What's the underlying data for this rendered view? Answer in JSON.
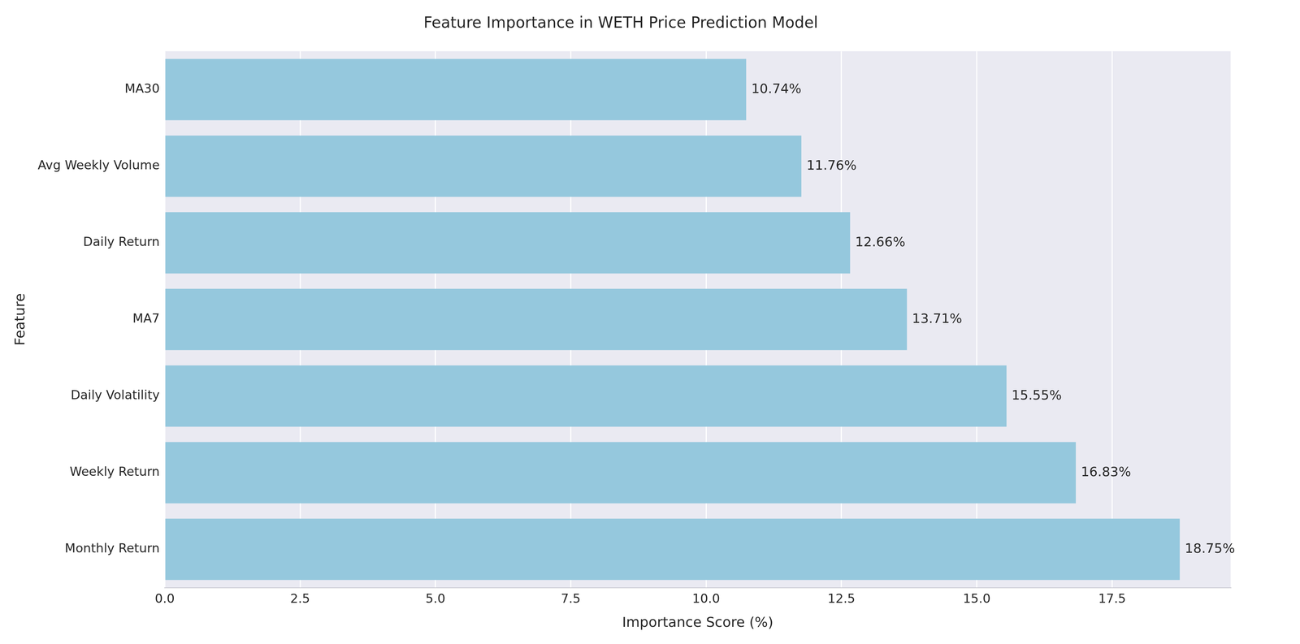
{
  "chart_data": {
    "type": "bar",
    "orientation": "horizontal",
    "title": "Feature Importance in WETH Price Prediction Model",
    "x_label": "Importance Score (%)",
    "y_label": "Feature",
    "categories": [
      "MA30",
      "Avg Weekly Volume",
      "Daily Return",
      "MA7",
      "Daily Volatility",
      "Weekly Return",
      "Monthly Return"
    ],
    "values": [
      10.74,
      11.76,
      12.66,
      13.71,
      15.55,
      16.83,
      18.75
    ],
    "value_labels": [
      "10.74%",
      "11.76%",
      "12.66%",
      "13.71%",
      "15.55%",
      "16.83%",
      "18.75%"
    ],
    "color": "#95c8dd",
    "xlim": [
      0,
      19.69
    ],
    "xticks": [
      {
        "value": 0,
        "label": "0.0"
      },
      2.5,
      {
        "value": 5,
        "label": "5.0"
      },
      7.5,
      {
        "value": 10,
        "label": "10.0"
      },
      12.5,
      {
        "value": 15,
        "label": "15.0"
      },
      17.5
    ],
    "grid": true,
    "data_labels": true
  }
}
